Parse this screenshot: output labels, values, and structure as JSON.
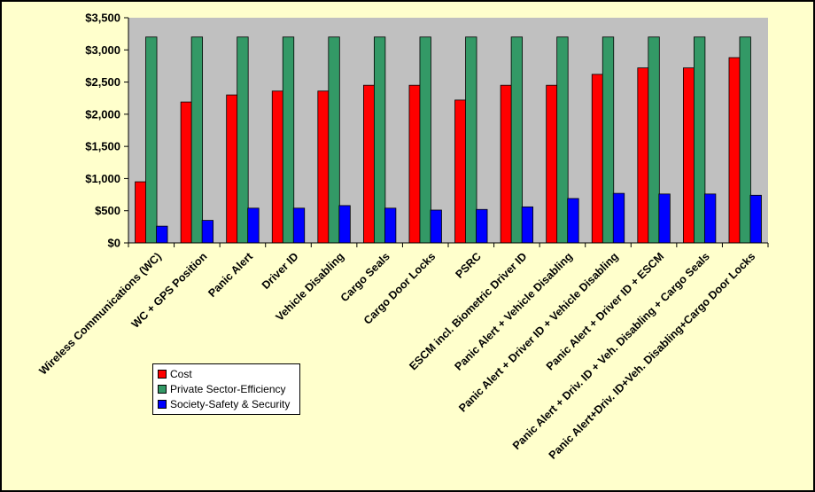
{
  "chart_data": {
    "type": "bar",
    "categories": [
      "Wireless Communications (WC)",
      "WC + GPS Position",
      "Panic Alert",
      "Driver ID",
      "Vehicle Disabling",
      "Cargo Seals",
      "Cargo Door Locks",
      "PSRC",
      "ESCM incl. Biometric Driver ID",
      "Panic Alert + Vehicle Disabling",
      "Panic Alert + Driver ID + Vehicle Disabling",
      "Panic Alert + Driver ID + ESCM",
      "Panic Alert + Driv. ID + Veh. Disabling + Cargo Seals",
      "Panic Alert+Driv. ID+Veh. Disabling+Cargo Door Locks"
    ],
    "series": [
      {
        "name": "Cost",
        "color": "#ff0000",
        "values": [
          950,
          2190,
          2300,
          2360,
          2360,
          2450,
          2450,
          2220,
          2450,
          2450,
          2620,
          2720,
          2720,
          2880
        ]
      },
      {
        "name": "Private Sector-Efficiency",
        "color": "#339966",
        "values": [
          3200,
          3200,
          3200,
          3200,
          3200,
          3200,
          3200,
          3200,
          3200,
          3200,
          3200,
          3200,
          3200,
          3200
        ]
      },
      {
        "name": "Society-Safety & Security",
        "color": "#0000ff",
        "values": [
          260,
          350,
          540,
          540,
          580,
          540,
          510,
          520,
          560,
          690,
          770,
          760,
          760,
          740
        ]
      }
    ],
    "y_ticks": [
      "$0",
      "$500",
      "$1,000",
      "$1,500",
      "$2,000",
      "$2,500",
      "$3,000",
      "$3,500"
    ],
    "ylim": [
      0,
      3500
    ],
    "grid": false,
    "legend_position": "bottom-left",
    "plot_background": "#c0c0c0",
    "page_background": "#ffffcc"
  }
}
